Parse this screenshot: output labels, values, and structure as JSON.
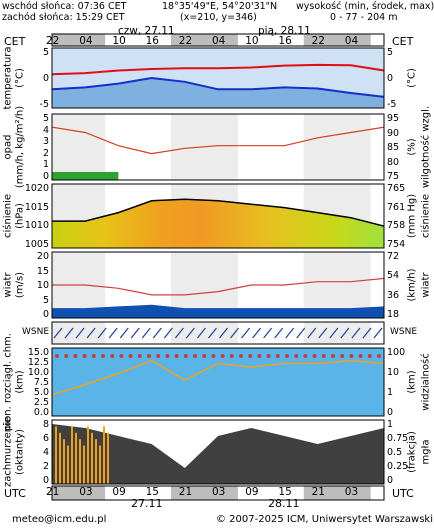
{
  "header": {
    "sunrise": "wschód słońca: 07:36 CET",
    "sunset": "zachód słońca: 15:29 CET",
    "coords": "18°35'49\"E, 54°20'31\"N",
    "grid": "(x=210, y=346)",
    "altitude_title": "wysokość (min, środek, max)",
    "altitude_range": "0 - 77 - 204 m"
  },
  "timebar": {
    "tz_top": "CET",
    "tz_bottom": "UTC",
    "day1_top": "czw, 27.11",
    "day2_top": "pią, 28.11",
    "day1_bottom": "27.11",
    "day2_bottom": "28.11",
    "hours_top": [
      "22",
      "04",
      "10",
      "16",
      "22",
      "04",
      "10",
      "16",
      "22",
      "04"
    ],
    "hours_bottom": [
      "21",
      "03",
      "09",
      "15",
      "21",
      "03",
      "09",
      "15",
      "21",
      "03"
    ]
  },
  "panels": {
    "temperature": {
      "label_left": "temperatura",
      "unit_left": "(°C)",
      "unit_right": "(°C)",
      "ticks": [
        "5",
        "0",
        "-5"
      ]
    },
    "precip": {
      "label_left": "opad",
      "unit_left": "(mm/h, kg/m²/h)",
      "label_right": "wilgotność wzgl.",
      "unit_right": "(%)",
      "ticks_left": [
        "5",
        "4",
        "3",
        "2",
        "1",
        "0"
      ],
      "ticks_right": [
        "95",
        "90",
        "85",
        "80",
        "75"
      ]
    },
    "pressure": {
      "label_left": "ciśnienie",
      "unit_left": "(hPa)",
      "label_right": "ciśnienie",
      "unit_right": "(mm Hg)",
      "ticks_left": [
        "1020",
        "1015",
        "1010",
        "1005"
      ],
      "ticks_right": [
        "765",
        "761",
        "758",
        "754"
      ]
    },
    "wind": {
      "label_left": "wiatr",
      "unit_left": "(m/s)",
      "label_right": "wiatr",
      "unit_right": "(km/h)",
      "ticks_left": [
        "20",
        "15",
        "10",
        "5",
        "0"
      ],
      "ticks_right": [
        "72",
        "54",
        "36",
        "18"
      ]
    },
    "winddir": {
      "compass": "WSNE"
    },
    "visibility": {
      "label_left": "pion. rozciągł. chm.",
      "unit_left": "(km)",
      "label_right": "widzialność",
      "unit_right": "(km)",
      "ticks_left": [
        "15.0",
        "12.5",
        "10.0",
        "7.5",
        "5.0",
        "2.5",
        "0.0"
      ],
      "ticks_right": [
        "100",
        "10",
        "1",
        "0"
      ]
    },
    "clouds": {
      "label_left": "zachmurzenie",
      "unit_left": "(oktanty)",
      "label_right": "mgła",
      "unit_right": "(frakcja)",
      "ticks_left": [
        "8",
        "6",
        "4",
        "2",
        "0"
      ],
      "ticks_right": [
        "1",
        "0.75",
        "0.5",
        "0.25",
        "0"
      ]
    }
  },
  "footer": {
    "email": "meteo@icm.edu.pl",
    "copyright": "© 2007-2025 ICM, Uniwersytet Warszawski"
  },
  "chart_data": {
    "type": "line",
    "x_hours_utc": [
      0,
      6,
      12,
      18,
      24,
      30,
      36,
      42,
      48,
      54,
      60
    ],
    "temperature_c": [
      2.0,
      2.3,
      3.0,
      3.4,
      3.6,
      3.6,
      3.8,
      4.3,
      4.5,
      4.4,
      3.0
    ],
    "dewpoint_c": [
      -2.0,
      -1.5,
      -0.5,
      1.0,
      0.0,
      -2.0,
      -2.0,
      -1.5,
      -1.8,
      -3.0,
      -4.0
    ],
    "pressure_hpa": [
      1010,
      1010,
      1012.5,
      1016,
      1016.5,
      1016,
      1015,
      1014,
      1012.5,
      1011,
      1008.5
    ],
    "humidity_pct": [
      92,
      90,
      85,
      82,
      84,
      85,
      85,
      85,
      88,
      90,
      92
    ],
    "wind_ms": [
      3,
      3,
      3.5,
      4,
      3,
      3,
      3,
      3,
      3,
      3,
      3.5
    ],
    "gust_ms": [
      10,
      10,
      9,
      7,
      7,
      8,
      10,
      10,
      11,
      11,
      12
    ],
    "visibility_km": [
      1,
      3,
      10,
      40,
      5,
      30,
      20,
      30,
      30,
      40,
      30
    ],
    "cloud_okta": [
      7.5,
      7,
      6,
      5,
      2,
      6,
      7,
      6,
      5,
      6,
      7
    ]
  }
}
